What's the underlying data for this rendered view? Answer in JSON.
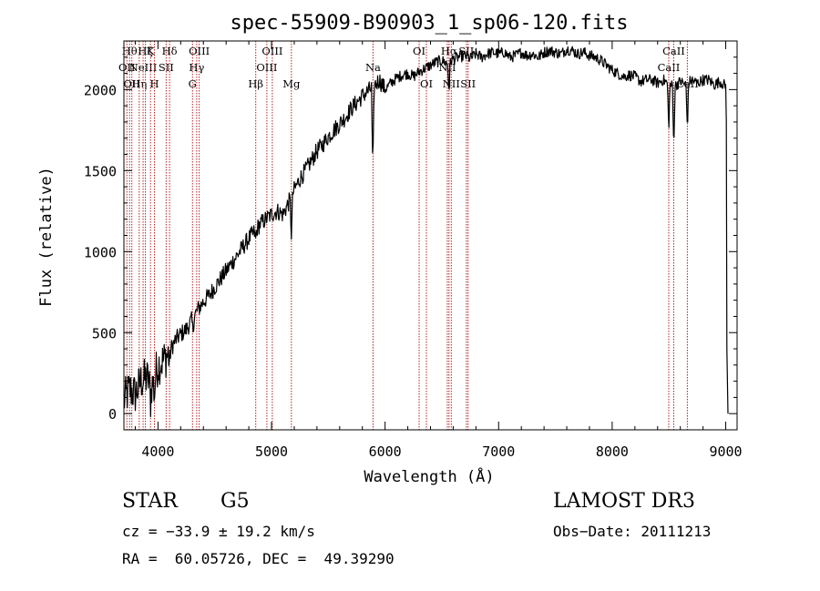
{
  "chart_data": {
    "type": "line",
    "title": "spec-55909-B90903_1_sp06-120.fits",
    "xlabel": "Wavelength (Å)",
    "ylabel": "Flux (relative)",
    "xlim": [
      3700,
      9100
    ],
    "ylim": [
      -100,
      2300
    ],
    "xticks": [
      4000,
      5000,
      6000,
      7000,
      8000,
      9000
    ],
    "yticks": [
      0,
      500,
      1000,
      1500,
      2000
    ],
    "series": [
      {
        "name": "spectrum",
        "color": "#000000",
        "x": [
          3700,
          3750,
          3800,
          3850,
          3900,
          3950,
          4000,
          4050,
          4100,
          4150,
          4200,
          4250,
          4300,
          4350,
          4400,
          4450,
          4500,
          4550,
          4600,
          4650,
          4700,
          4750,
          4800,
          4850,
          4900,
          4950,
          5000,
          5050,
          5100,
          5150,
          5200,
          5250,
          5300,
          5350,
          5400,
          5450,
          5500,
          5550,
          5600,
          5650,
          5700,
          5750,
          5800,
          5850,
          5900,
          5950,
          6000,
          6050,
          6100,
          6150,
          6200,
          6250,
          6300,
          6350,
          6400,
          6450,
          6500,
          6550,
          6600,
          6650,
          6700,
          6750,
          6800,
          6850,
          6900,
          6950,
          7000,
          7050,
          7100,
          7150,
          7200,
          7250,
          7300,
          7350,
          7400,
          7450,
          7500,
          7550,
          7600,
          7650,
          7700,
          7750,
          7800,
          7850,
          7900,
          7950,
          8000,
          8050,
          8100,
          8150,
          8200,
          8250,
          8300,
          8350,
          8400,
          8450,
          8500,
          8550,
          8600,
          8650,
          8700,
          8750,
          8800,
          8850,
          8900,
          8950,
          9000
        ],
        "y": [
          80,
          150,
          120,
          200,
          220,
          180,
          300,
          330,
          380,
          450,
          490,
          520,
          580,
          640,
          690,
          730,
          780,
          830,
          880,
          930,
          980,
          1030,
          1080,
          1120,
          1170,
          1200,
          1230,
          1250,
          1230,
          1300,
          1380,
          1450,
          1500,
          1560,
          1620,
          1660,
          1710,
          1750,
          1790,
          1830,
          1880,
          1920,
          1960,
          1990,
          2020,
          2060,
          2000,
          2040,
          2070,
          2090,
          2100,
          2080,
          2110,
          2130,
          2150,
          2170,
          2180,
          2160,
          2190,
          2200,
          2210,
          2190,
          2220,
          2200,
          2220,
          2230,
          2220,
          2230,
          2200,
          2210,
          2230,
          2210,
          2220,
          2200,
          2230,
          2240,
          2230,
          2220,
          2250,
          2240,
          2220,
          2230,
          2210,
          2200,
          2180,
          2150,
          2120,
          2100,
          2080,
          2090,
          2080,
          2050,
          2060,
          2060,
          2040,
          2060,
          2030,
          2020,
          2050,
          2030,
          2060,
          2040,
          2060,
          2060,
          2030,
          2050,
          2020
        ]
      }
    ],
    "absorption_dips": [
      {
        "x": 3934,
        "depth": 120
      },
      {
        "x": 3969,
        "depth": 110
      },
      {
        "x": 4102,
        "depth": 60
      },
      {
        "x": 4308,
        "depth": 80
      },
      {
        "x": 4861,
        "depth": 60
      },
      {
        "x": 5175,
        "depth": 230
      },
      {
        "x": 5892,
        "depth": 540
      },
      {
        "x": 6563,
        "depth": 180
      },
      {
        "x": 8498,
        "depth": 280
      },
      {
        "x": 8542,
        "depth": 380
      },
      {
        "x": 8662,
        "depth": 280
      }
    ],
    "edge_tail": {
      "x": [
        9005,
        9010,
        9020
      ],
      "y": [
        1800,
        400,
        0
      ]
    },
    "lines": [
      {
        "x": 3726,
        "labels": [
          "OII"
        ],
        "row": 1
      },
      {
        "x": 3750,
        "labels": [
          "Hθ"
        ],
        "row": 0
      },
      {
        "x": 3770,
        "labels": [
          "OII"
        ],
        "row": 2
      },
      {
        "x": 3835,
        "labels": [
          "Hη"
        ],
        "row": 2
      },
      {
        "x": 3869,
        "labels": [
          "NeIII"
        ],
        "row": 1
      },
      {
        "x": 3889,
        "labels": [
          "Hζ"
        ],
        "row": 0
      },
      {
        "x": 3934,
        "labels": [
          "K"
        ],
        "row": 0
      },
      {
        "x": 3969,
        "labels": [
          "H"
        ],
        "row": 2
      },
      {
        "x": 4072,
        "labels": [
          "SII"
        ],
        "row": 1
      },
      {
        "x": 4102,
        "labels": [
          "Hδ"
        ],
        "row": 0
      },
      {
        "x": 4304,
        "labels": [
          "G"
        ],
        "row": 2
      },
      {
        "x": 4341,
        "labels": [
          "Hγ"
        ],
        "row": 1
      },
      {
        "x": 4363,
        "labels": [
          "OIII"
        ],
        "row": 0
      },
      {
        "x": 4861,
        "labels": [
          "Hβ"
        ],
        "row": 2
      },
      {
        "x": 4959,
        "labels": [
          "OIII"
        ],
        "row": 1
      },
      {
        "x": 5007,
        "labels": [
          "OIII"
        ],
        "row": 0
      },
      {
        "x": 5175,
        "labels": [
          "Mg"
        ],
        "row": 2
      },
      {
        "x": 5894,
        "labels": [
          "Na"
        ],
        "row": 1
      },
      {
        "x": 6300,
        "labels": [
          "OI"
        ],
        "row": 0
      },
      {
        "x": 6364,
        "labels": [
          "OI"
        ],
        "row": 2
      },
      {
        "x": 6548,
        "labels": [
          "NII"
        ],
        "row": 1
      },
      {
        "x": 6563,
        "labels": [
          "Hα"
        ],
        "row": 0
      },
      {
        "x": 6583,
        "labels": [
          "NII"
        ],
        "row": 2
      },
      {
        "x": 6716,
        "labels": [
          "SII"
        ],
        "row": 0
      },
      {
        "x": 6731,
        "labels": [
          "SII"
        ],
        "row": 2
      },
      {
        "x": 8498,
        "labels": [
          "CaII"
        ],
        "row": 1
      },
      {
        "x": 8542,
        "labels": [
          "CaII"
        ],
        "row": 0
      },
      {
        "x": 8662,
        "labels": [
          "CaII"
        ],
        "row": 2
      }
    ],
    "line_color": "#b22222"
  },
  "info": {
    "class_label": "STAR",
    "subclass": "G5",
    "survey": "LAMOST DR3",
    "cz": "cz = −33.9 ± 19.2 km/s",
    "obs_date": "Obs−Date: 20111213",
    "radec": "RA =  60.05726, DEC =  49.39290"
  }
}
